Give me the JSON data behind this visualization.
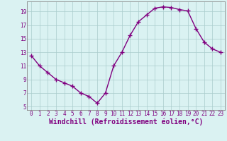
{
  "x": [
    0,
    1,
    2,
    3,
    4,
    5,
    6,
    7,
    8,
    9,
    10,
    11,
    12,
    13,
    14,
    15,
    16,
    17,
    18,
    19,
    20,
    21,
    22,
    23
  ],
  "y": [
    12.5,
    11.0,
    10.0,
    9.0,
    8.5,
    8.0,
    7.0,
    6.5,
    5.5,
    7.0,
    11.0,
    13.0,
    15.5,
    17.5,
    18.5,
    19.5,
    19.7,
    19.6,
    19.3,
    19.1,
    16.5,
    14.5,
    13.5,
    13.0
  ],
  "line_color": "#800080",
  "marker": "+",
  "markersize": 4,
  "linewidth": 1.0,
  "markeredgewidth": 1.0,
  "xlabel": "Windchill (Refroidissement éolien,°C)",
  "xlim": [
    -0.5,
    23.5
  ],
  "ylim": [
    4.5,
    20.5
  ],
  "yticks": [
    5,
    7,
    9,
    11,
    13,
    15,
    17,
    19
  ],
  "xticks": [
    0,
    1,
    2,
    3,
    4,
    5,
    6,
    7,
    8,
    9,
    10,
    11,
    12,
    13,
    14,
    15,
    16,
    17,
    18,
    19,
    20,
    21,
    22,
    23
  ],
  "bg_color": "#daf2f2",
  "grid_color": "#aacccc",
  "tick_label_color": "#800080",
  "xlabel_color": "#800080",
  "tick_fontsize": 5.5,
  "xlabel_fontsize": 7.0,
  "spine_color": "#888888"
}
